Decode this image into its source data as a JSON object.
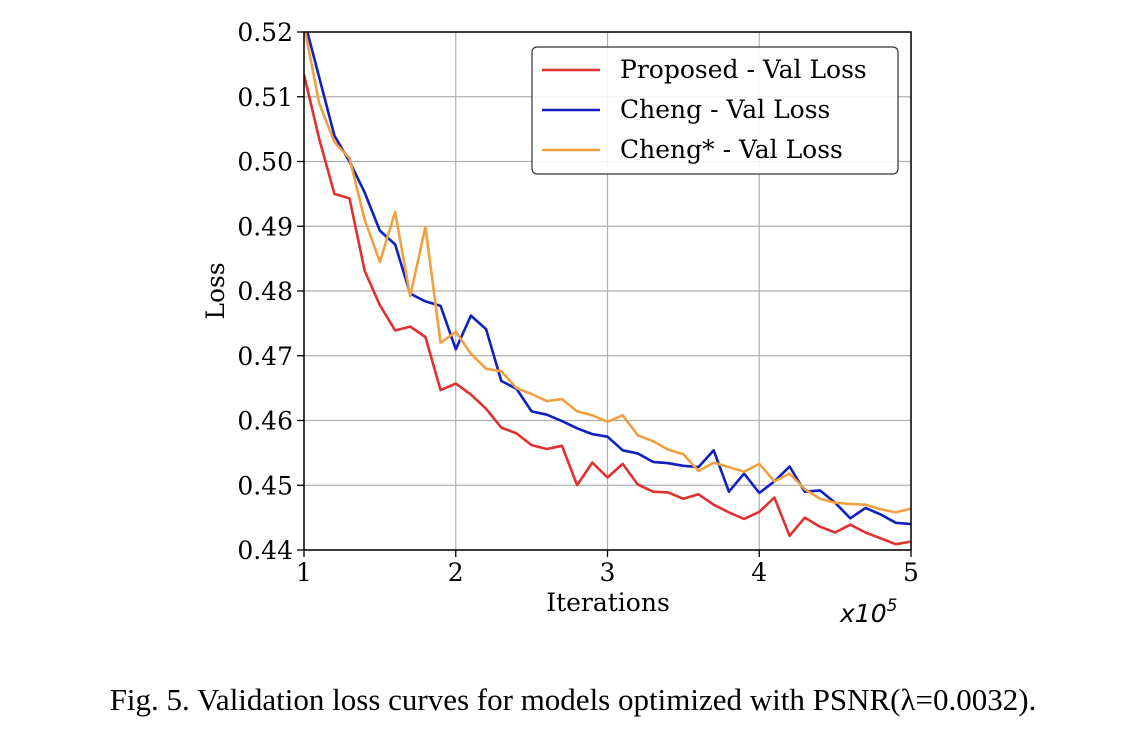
{
  "chart_data": {
    "type": "line",
    "xlabel": "Iterations",
    "ylabel": "Loss",
    "x_exponent_label": "x10",
    "x_exponent_power": "5",
    "xlim": [
      1,
      5
    ],
    "ylim": [
      0.44,
      0.52
    ],
    "xticks": [
      "1",
      "2",
      "3",
      "4",
      "5"
    ],
    "yticks": [
      "0.44",
      "0.45",
      "0.46",
      "0.47",
      "0.48",
      "0.49",
      "0.50",
      "0.51",
      "0.52"
    ],
    "grid": true,
    "legend_position": "top-right",
    "x": [
      1.0,
      1.1,
      1.2,
      1.3,
      1.4,
      1.5,
      1.6,
      1.7,
      1.8,
      1.9,
      2.0,
      2.1,
      2.2,
      2.3,
      2.4,
      2.5,
      2.6,
      2.7,
      2.8,
      2.9,
      3.0,
      3.1,
      3.2,
      3.3,
      3.4,
      3.5,
      3.6,
      3.7,
      3.8,
      3.9,
      4.0,
      4.1,
      4.2,
      4.3,
      4.4,
      4.5,
      4.6,
      4.7,
      4.8,
      4.9,
      5.0
    ],
    "series": [
      {
        "name": "Proposed - Val Loss",
        "color": "#e03030",
        "values": [
          0.5134,
          0.5035,
          0.495,
          0.4943,
          0.4831,
          0.4778,
          0.4739,
          0.4745,
          0.4729,
          0.4647,
          0.4657,
          0.464,
          0.4618,
          0.4589,
          0.458,
          0.4562,
          0.4556,
          0.4561,
          0.45,
          0.4535,
          0.4512,
          0.4533,
          0.4501,
          0.449,
          0.4489,
          0.4479,
          0.4486,
          0.447,
          0.4458,
          0.4448,
          0.4459,
          0.4481,
          0.4422,
          0.445,
          0.4436,
          0.4427,
          0.4439,
          0.4427,
          0.4418,
          0.4409,
          0.4413
        ]
      },
      {
        "name": "Cheng - Val Loss",
        "color": "#1020c0",
        "values": [
          0.522,
          0.513,
          0.504,
          0.5,
          0.4952,
          0.4893,
          0.4872,
          0.4796,
          0.4784,
          0.4777,
          0.471,
          0.4762,
          0.4741,
          0.4661,
          0.4649,
          0.4614,
          0.4609,
          0.4599,
          0.4588,
          0.4579,
          0.4575,
          0.4554,
          0.4549,
          0.4536,
          0.4534,
          0.453,
          0.4528,
          0.4554,
          0.449,
          0.4518,
          0.4488,
          0.4506,
          0.4529,
          0.449,
          0.4492,
          0.4473,
          0.4449,
          0.4465,
          0.4455,
          0.4442,
          0.444
        ]
      },
      {
        "name": "Cheng* - Val Loss",
        "color": "#f0a040",
        "values": [
          0.521,
          0.509,
          0.503,
          0.5005,
          0.491,
          0.4845,
          0.4922,
          0.4792,
          0.4899,
          0.472,
          0.4737,
          0.4703,
          0.468,
          0.4676,
          0.465,
          0.4641,
          0.463,
          0.4633,
          0.4614,
          0.4608,
          0.4598,
          0.4608,
          0.4577,
          0.4568,
          0.4555,
          0.4548,
          0.4522,
          0.4535,
          0.4528,
          0.4521,
          0.4533,
          0.4506,
          0.4518,
          0.4494,
          0.4479,
          0.4473,
          0.4471,
          0.447,
          0.4463,
          0.4458,
          0.4464
        ]
      }
    ]
  },
  "caption": "Fig. 5.  Validation loss curves for models optimized with PSNR(λ=0.0032)."
}
